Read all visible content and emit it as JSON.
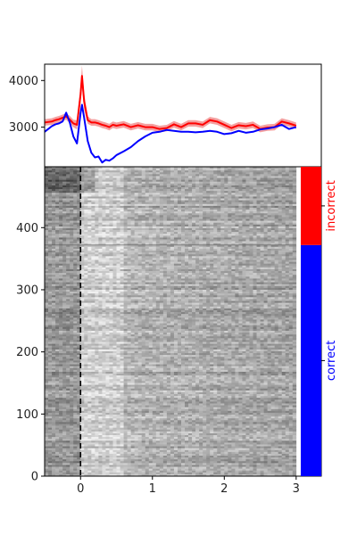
{
  "chart_data": [
    {
      "type": "line",
      "title": "",
      "xlabel": "",
      "ylabel": "",
      "xlim": [
        -0.5,
        3.35
      ],
      "ylim": [
        2150,
        4350
      ],
      "yticks": [
        3000,
        4000
      ],
      "grid": false,
      "series": [
        {
          "color": "#ff0000",
          "band_color": "#f08080",
          "x": [
            -0.5,
            -0.45,
            -0.4,
            -0.35,
            -0.3,
            -0.25,
            -0.2,
            -0.15,
            -0.1,
            -0.05,
            0.0,
            0.02,
            0.05,
            0.1,
            0.15,
            0.2,
            0.25,
            0.3,
            0.35,
            0.4,
            0.45,
            0.5,
            0.6,
            0.7,
            0.8,
            0.9,
            1.0,
            1.1,
            1.2,
            1.3,
            1.4,
            1.5,
            1.6,
            1.7,
            1.8,
            1.9,
            2.0,
            2.1,
            2.2,
            2.3,
            2.4,
            2.5,
            2.6,
            2.7,
            2.8,
            2.9,
            3.0
          ],
          "y": [
            3100,
            3110,
            3120,
            3150,
            3170,
            3200,
            3230,
            3160,
            3080,
            3050,
            3700,
            4100,
            3550,
            3150,
            3100,
            3100,
            3080,
            3050,
            3030,
            3000,
            3050,
            3030,
            3060,
            3000,
            3040,
            3000,
            3000,
            2960,
            2980,
            3060,
            3000,
            3080,
            3080,
            3050,
            3150,
            3120,
            3050,
            2980,
            3040,
            3020,
            3050,
            2960,
            2990,
            3000,
            3120,
            3080,
            3030
          ],
          "band": [
            70,
            70,
            70,
            70,
            70,
            70,
            70,
            80,
            80,
            100,
            200,
            220,
            180,
            80,
            70,
            70,
            70,
            70,
            70,
            70,
            70,
            70,
            70,
            70,
            70,
            70,
            70,
            70,
            70,
            70,
            70,
            70,
            70,
            70,
            70,
            70,
            70,
            70,
            70,
            70,
            70,
            70,
            70,
            70,
            70,
            70,
            70
          ]
        },
        {
          "color": "#0000ff",
          "x": [
            -0.5,
            -0.45,
            -0.4,
            -0.35,
            -0.3,
            -0.25,
            -0.2,
            -0.15,
            -0.1,
            -0.05,
            0.0,
            0.02,
            0.05,
            0.1,
            0.15,
            0.2,
            0.25,
            0.3,
            0.35,
            0.4,
            0.45,
            0.5,
            0.6,
            0.7,
            0.8,
            0.9,
            1.0,
            1.1,
            1.2,
            1.3,
            1.4,
            1.5,
            1.6,
            1.7,
            1.8,
            1.9,
            2.0,
            2.1,
            2.2,
            2.3,
            2.4,
            2.5,
            2.6,
            2.7,
            2.8,
            2.9,
            3.0
          ],
          "y": [
            2900,
            2960,
            3020,
            3060,
            3080,
            3120,
            3310,
            3100,
            2800,
            2650,
            3300,
            3480,
            3200,
            2700,
            2450,
            2350,
            2370,
            2240,
            2300,
            2280,
            2330,
            2400,
            2480,
            2570,
            2700,
            2800,
            2880,
            2900,
            2940,
            2920,
            2900,
            2900,
            2890,
            2900,
            2920,
            2900,
            2850,
            2870,
            2920,
            2880,
            2900,
            2950,
            2970,
            3000,
            3050,
            2960,
            3000
          ]
        }
      ]
    },
    {
      "type": "heatmap",
      "title": "",
      "xlabel": "",
      "ylabel": "",
      "xlim": [
        -0.5,
        3.35
      ],
      "ylim": [
        0,
        498
      ],
      "xticks": [
        0,
        1,
        2,
        3
      ],
      "yticks": [
        0,
        100,
        200,
        300,
        400
      ],
      "rows": 498,
      "x_range": [
        -0.5,
        3.0
      ],
      "event_marker_x": 0,
      "colormap": "grayscale",
      "grid": false
    },
    {
      "type": "bar",
      "orientation": "vertical-stacked",
      "categories": [
        "correct",
        "incorrect"
      ],
      "ranges": [
        [
          0,
          372
        ],
        [
          372,
          498
        ]
      ],
      "colors": [
        "#0000ff",
        "#ff0000"
      ]
    }
  ]
}
